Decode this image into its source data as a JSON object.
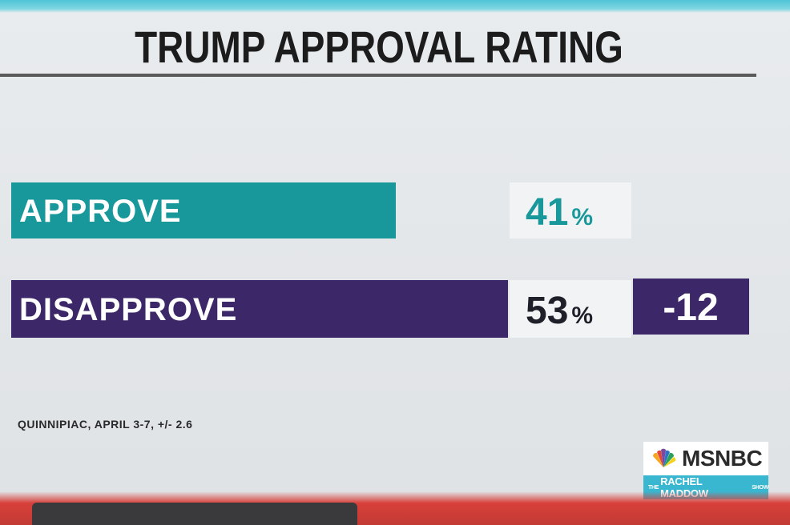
{
  "title": "TRUMP APPROVAL RATING",
  "chart_data": {
    "type": "bar",
    "orientation": "horizontal",
    "title": "TRUMP APPROVAL RATING",
    "categories": [
      "APPROVE",
      "DISAPPROVE"
    ],
    "values": [
      41,
      53
    ],
    "value_labels": [
      "41",
      "53"
    ],
    "unit": "%",
    "net_label": "-12",
    "colors": [
      "#18989b",
      "#3c2868"
    ],
    "xlim": [
      0,
      53
    ]
  },
  "source": "QUINNIPIAC, APRIL 3-7, +/- 2.6",
  "logo": {
    "network": "MSNBC",
    "show_prefix": "THE",
    "show_name": "RACHEL MADDOW",
    "show_suffix": "SHOW"
  },
  "colors": {
    "approve": "#18989b",
    "disapprove": "#3c2868",
    "net_box": "#3c2868",
    "accent": "#39b7d0"
  }
}
